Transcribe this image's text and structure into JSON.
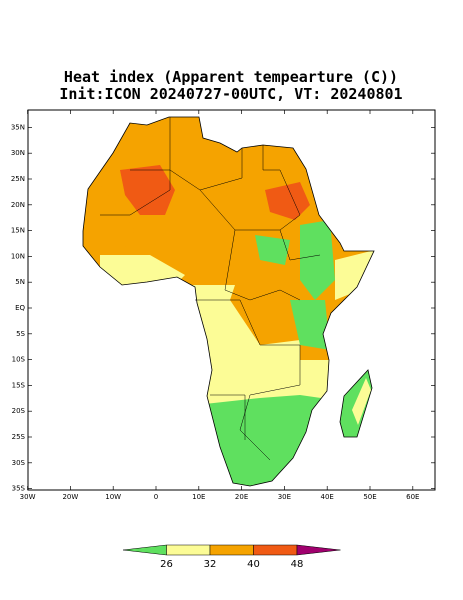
{
  "header": {
    "title": "Heat index (Apparent tempearture (C))",
    "subtitle": "Init:ICON 20240727-00UTC, VT: 20240801"
  },
  "map": {
    "lat_ticks": [
      {
        "value": 35,
        "label": "35N"
      },
      {
        "value": 30,
        "label": "30N"
      },
      {
        "value": 25,
        "label": "25N"
      },
      {
        "value": 20,
        "label": "20N"
      },
      {
        "value": 15,
        "label": "15N"
      },
      {
        "value": 10,
        "label": "10N"
      },
      {
        "value": 5,
        "label": "5N"
      },
      {
        "value": 0,
        "label": "EQ"
      },
      {
        "value": -5,
        "label": "5S"
      },
      {
        "value": -10,
        "label": "10S"
      },
      {
        "value": -15,
        "label": "15S"
      },
      {
        "value": -20,
        "label": "20S"
      },
      {
        "value": -25,
        "label": "25S"
      },
      {
        "value": -30,
        "label": "30S"
      },
      {
        "value": -35,
        "label": "35S"
      }
    ],
    "lon_ticks": [
      {
        "value": -30,
        "label": "30W"
      },
      {
        "value": -20,
        "label": "20W"
      },
      {
        "value": -10,
        "label": "10W"
      },
      0,
      {
        "value": 10,
        "label": "10E"
      },
      {
        "value": 20,
        "label": "20E"
      },
      {
        "value": 30,
        "label": "30E"
      },
      {
        "value": 40,
        "label": "40E"
      },
      {
        "value": 50,
        "label": "50E"
      },
      {
        "value": 60,
        "label": "60E"
      }
    ]
  },
  "colorbar": {
    "levels": [
      26,
      32,
      40,
      48
    ],
    "colors": [
      "#5fe05f",
      "#fcfc96",
      "#f5a300",
      "#f05a14",
      "#a0006e"
    ]
  }
}
